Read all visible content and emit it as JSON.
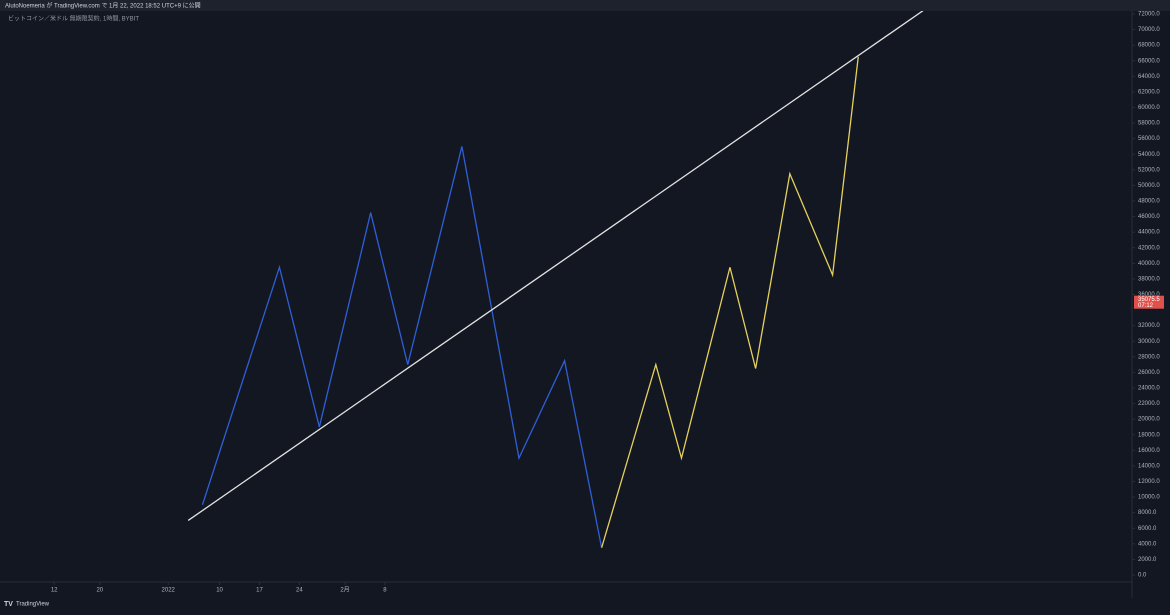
{
  "header": {
    "title": "AlutoNoemeria が TradingView.com で 1月 22, 2022 18:52 UTC+9 に公開"
  },
  "footer": {
    "brand": "TradingView"
  },
  "chart_data": {
    "type": "line",
    "title": "ビットコイン／米ドル 無期限契約, 1時間, BYBIT",
    "xlim": [
      -29.5,
      169
    ],
    "ylim": [
      0,
      72000
    ],
    "xticks": [
      {
        "value": -20,
        "label": "12"
      },
      {
        "value": -12,
        "label": "20"
      },
      {
        "value": 0,
        "label": "2022"
      },
      {
        "value": 9,
        "label": "10"
      },
      {
        "value": 16,
        "label": "17"
      },
      {
        "value": 23,
        "label": "24"
      },
      {
        "value": 31,
        "label": "2月"
      },
      {
        "value": 38,
        "label": "8"
      }
    ],
    "yticks": [
      {
        "value": 0,
        "label": "0.0"
      },
      {
        "value": 2000,
        "label": "2000.0"
      },
      {
        "value": 4000,
        "label": "4000.0"
      },
      {
        "value": 6000,
        "label": "6000.0"
      },
      {
        "value": 8000,
        "label": "8000.0"
      },
      {
        "value": 10000,
        "label": "10000.0"
      },
      {
        "value": 12000,
        "label": "12000.0"
      },
      {
        "value": 14000,
        "label": "14000.0"
      },
      {
        "value": 16000,
        "label": "16000.0"
      },
      {
        "value": 18000,
        "label": "18000.0"
      },
      {
        "value": 20000,
        "label": "20000.0"
      },
      {
        "value": 22000,
        "label": "22000.0"
      },
      {
        "value": 24000,
        "label": "24000.0"
      },
      {
        "value": 26000,
        "label": "26000.0"
      },
      {
        "value": 28000,
        "label": "28000.0"
      },
      {
        "value": 30000,
        "label": "30000.0"
      },
      {
        "value": 32000,
        "label": "32000.0"
      },
      {
        "value": 36000,
        "label": "36000.0"
      },
      {
        "value": 38000,
        "label": "38000.0"
      },
      {
        "value": 40000,
        "label": "40000.0"
      },
      {
        "value": 42000,
        "label": "42000.0"
      },
      {
        "value": 44000,
        "label": "44000.0"
      },
      {
        "value": 46000,
        "label": "46000.0"
      },
      {
        "value": 48000,
        "label": "48000.0"
      },
      {
        "value": 50000,
        "label": "50000.0"
      },
      {
        "value": 52000,
        "label": "52000.0"
      },
      {
        "value": 54000,
        "label": "54000.0"
      },
      {
        "value": 56000,
        "label": "56000.0"
      },
      {
        "value": 58000,
        "label": "58000.0"
      },
      {
        "value": 60000,
        "label": "60000.0"
      },
      {
        "value": 62000,
        "label": "62000.0"
      },
      {
        "value": 64000,
        "label": "64000.0"
      },
      {
        "value": 66000,
        "label": "66000.0"
      },
      {
        "value": 68000,
        "label": "68000.0"
      },
      {
        "value": 70000,
        "label": "70000.0"
      },
      {
        "value": 72000,
        "label": "72000.0"
      }
    ],
    "series": [
      {
        "color": "#2f5fd6",
        "x": [
          6,
          19.5,
          26.5,
          35.5,
          42,
          51.5,
          61.5,
          69.5,
          76
        ],
        "values": [
          9000,
          39500,
          19000,
          46500,
          27000,
          55000,
          15000,
          27500,
          3500
        ]
      },
      {
        "color": "#e6d15c",
        "x": [
          76,
          85.5,
          90,
          98.5,
          103,
          109,
          116.5,
          121
        ],
        "values": [
          3500,
          27000,
          15000,
          39500,
          26500,
          51500,
          38500,
          66500
        ]
      },
      {
        "color": "#e4e4e4",
        "x": [
          3.5,
          132.5
        ],
        "values": [
          7000,
          72500
        ]
      }
    ],
    "last_price": {
      "value": 35075.5,
      "countdown": "07:12",
      "color": "#e0514b"
    }
  }
}
